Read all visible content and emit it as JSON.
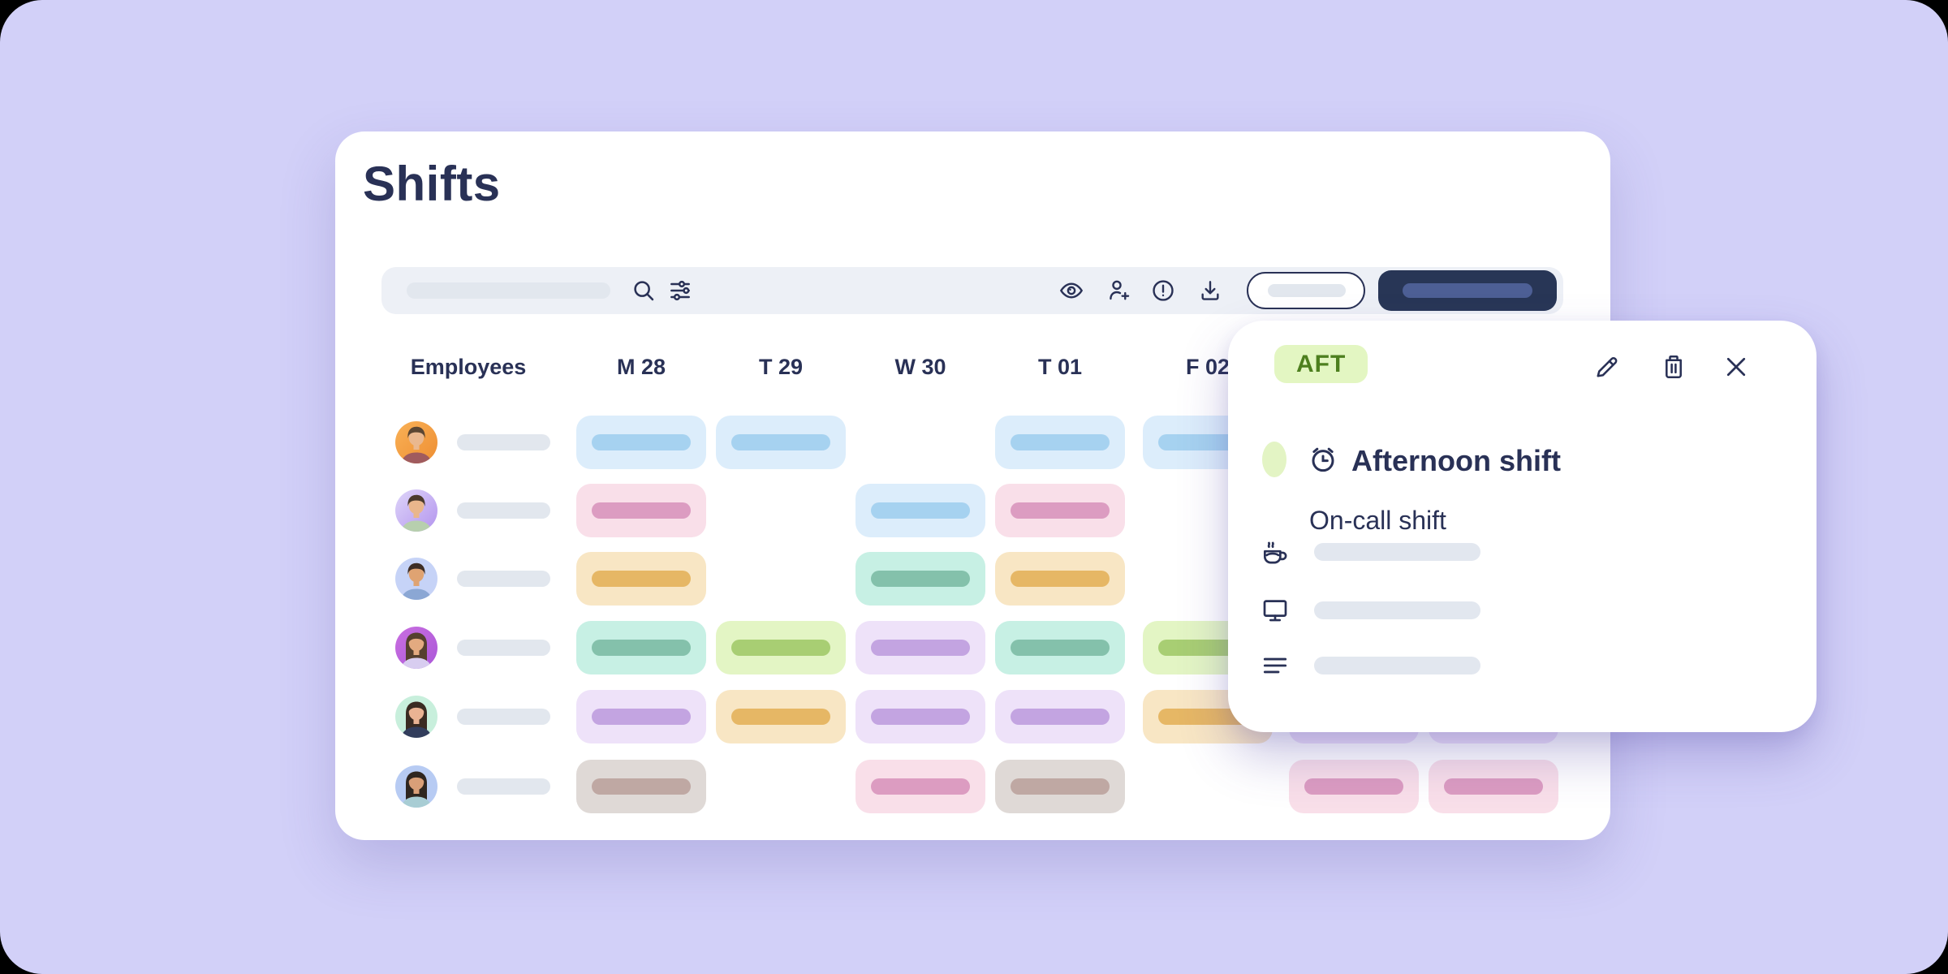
{
  "page": {
    "background_color": "#d2d0f8",
    "corner_color": "#000000",
    "accent_navy": "#293156"
  },
  "header": {
    "title": "Shifts"
  },
  "toolbar": {
    "search": {
      "placeholder_bar": true,
      "search_icon": "search-icon",
      "filter_icon": "filter-sliders-icon"
    },
    "action_icons": [
      "eye-icon",
      "person-add-icon",
      "alert-icon",
      "download-icon"
    ],
    "secondary_button": {
      "placeholder_bar": true,
      "border_color": "#293156"
    },
    "primary_button": {
      "placeholder_bar": true,
      "bg": "#283656",
      "bar_color": "#4d5f95"
    }
  },
  "schedule": {
    "employees_header": "Employees",
    "day_headers": [
      "M 28",
      "T 29",
      "W 30",
      "T 01",
      "F 02",
      "",
      ""
    ],
    "shift_types": {
      "blue": {
        "bg": "#dcedfb",
        "bar": "#a6d2f0"
      },
      "pink": {
        "bg": "#f9dfe9",
        "bar": "#dc9cc1"
      },
      "orange": {
        "bg": "#f8e6c4",
        "bar": "#e6b765"
      },
      "teal": {
        "bg": "#c7f0e4",
        "bar": "#84c1ab"
      },
      "lime": {
        "bg": "#e3f5c4",
        "bar": "#a8ce73"
      },
      "purple": {
        "bg": "#eee2f9",
        "bar": "#c3a4e1"
      },
      "taupe": {
        "bg": "#dfd9d6",
        "bar": "#bfa8a3"
      }
    },
    "rows": [
      {
        "avatar": {
          "from": "#f9b156",
          "to": "#ee8e33",
          "hair": "short",
          "hair_color": "#5b4632",
          "skin": "#eab88f",
          "shirt": "#a05b5e"
        },
        "cells": [
          "blue",
          "blue",
          null,
          "blue",
          "blue",
          null,
          null
        ]
      },
      {
        "avatar": {
          "from": "#ded5f9",
          "to": "#b394ee",
          "hair": "short",
          "hair_color": "#4a3a2c",
          "skin": "#e9b68c",
          "shirt": "#b7cfae"
        },
        "cells": [
          "pink",
          null,
          "blue",
          "pink",
          null,
          null,
          null
        ]
      },
      {
        "avatar": {
          "from": "#c6d3f7",
          "to": "#c6d3f7",
          "hair": "short",
          "hair_color": "#3e2e26",
          "skin": "#dfa372",
          "shirt": "#8ba7d4"
        },
        "cells": [
          "orange",
          null,
          "teal",
          "orange",
          null,
          null,
          null
        ]
      },
      {
        "avatar": {
          "from": "#c96fe0",
          "to": "#ab57d8",
          "hair": "long",
          "hair_color": "#55402e",
          "skin": "#e3aa80",
          "shirt": "#d8cdf0"
        },
        "cells": [
          "teal",
          "lime",
          "purple",
          "teal",
          "lime",
          null,
          null
        ]
      },
      {
        "avatar": {
          "from": "#c8efdc",
          "to": "#c8efdc",
          "hair": "long",
          "hair_color": "#3a2b22",
          "skin": "#eab393",
          "shirt": "#323d5c"
        },
        "cells": [
          "purple",
          "orange",
          "purple",
          "purple",
          "orange",
          "purple",
          "purple"
        ]
      },
      {
        "avatar": {
          "from": "#b7cbf3",
          "to": "#b7cbf3",
          "hair": "long",
          "hair_color": "#2f2620",
          "skin": "#d99f78",
          "shirt": "#a8cdd4"
        },
        "cells": [
          "taupe",
          null,
          "pink",
          "taupe",
          null,
          "pink",
          "pink"
        ]
      }
    ]
  },
  "popup": {
    "badge": {
      "label": "AFT",
      "bg": "#e3f6c2",
      "text_color": "#4d7f1e"
    },
    "actions": [
      "edit-pencil-icon",
      "trash-icon",
      "close-icon"
    ],
    "dot_color": "#e3f4c4",
    "title_icon": "alarm-clock-icon",
    "title": "Afternoon shift",
    "subtitle": "On-call shift",
    "detail_rows": [
      "coffee-icon",
      "monitor-icon",
      "notes-icon"
    ],
    "placeholder_bars": 3
  }
}
